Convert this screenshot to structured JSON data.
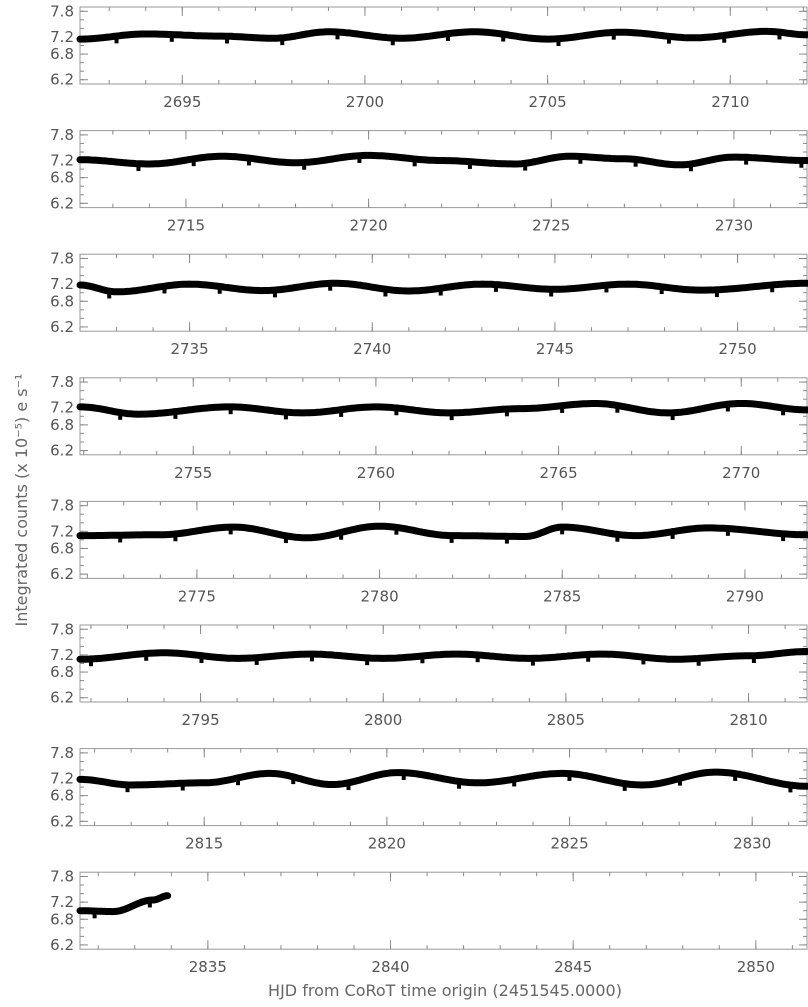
{
  "chart_data": {
    "type": "line",
    "xlabel": "HJD from CoRoT time origin (2451545.0000)",
    "ylabel": "Integrated counts (x 10⁻⁵) e s⁻¹",
    "y_tick_labels": [
      "7.8",
      "7.2",
      "6.8",
      "6.2"
    ],
    "ylim": [
      6.1,
      7.9
    ],
    "series_color": "#000000",
    "transit_period_days": 1.5122,
    "transit_depth": 0.17,
    "panels": [
      {
        "xlim": [
          2692.2,
          2712.1
        ],
        "x_tick_labels": [
          "2695",
          "2700",
          "2705",
          "2710"
        ],
        "trend": [
          [
            2692.2,
            7.15
          ],
          [
            2694,
            7.27
          ],
          [
            2696,
            7.22
          ],
          [
            2697.5,
            7.17
          ],
          [
            2699,
            7.32
          ],
          [
            2701,
            7.17
          ],
          [
            2703,
            7.32
          ],
          [
            2705,
            7.15
          ],
          [
            2707,
            7.31
          ],
          [
            2709,
            7.18
          ],
          [
            2711,
            7.33
          ],
          [
            2712.1,
            7.25
          ]
        ],
        "first_transit": 2693.2
      },
      {
        "xlim": [
          2712.1,
          2732.0
        ],
        "x_tick_labels": [
          "2715",
          "2720",
          "2725",
          "2730"
        ],
        "trend": [
          [
            2712.1,
            7.22
          ],
          [
            2714,
            7.12
          ],
          [
            2716,
            7.3
          ],
          [
            2718,
            7.15
          ],
          [
            2720,
            7.32
          ],
          [
            2722,
            7.2
          ],
          [
            2724,
            7.12
          ],
          [
            2725.5,
            7.3
          ],
          [
            2727,
            7.24
          ],
          [
            2728.5,
            7.1
          ],
          [
            2730,
            7.28
          ],
          [
            2732,
            7.2
          ]
        ],
        "first_transit": 2713.7
      },
      {
        "xlim": [
          2732.0,
          2751.9
        ],
        "x_tick_labels": [
          "2735",
          "2740",
          "2745",
          "2750"
        ],
        "trend": [
          [
            2732,
            7.18
          ],
          [
            2733,
            7.02
          ],
          [
            2735,
            7.2
          ],
          [
            2737,
            7.05
          ],
          [
            2739,
            7.22
          ],
          [
            2741,
            7.04
          ],
          [
            2743,
            7.2
          ],
          [
            2745,
            7.08
          ],
          [
            2747,
            7.2
          ],
          [
            2749,
            7.06
          ],
          [
            2751.9,
            7.22
          ]
        ],
        "first_transit": 2732.8
      },
      {
        "xlim": [
          2751.9,
          2771.8
        ],
        "x_tick_labels": [
          "2755",
          "2760",
          "2765",
          "2770"
        ],
        "trend": [
          [
            2751.9,
            7.22
          ],
          [
            2753.5,
            7.05
          ],
          [
            2756,
            7.22
          ],
          [
            2758,
            7.08
          ],
          [
            2760,
            7.22
          ],
          [
            2762,
            7.08
          ],
          [
            2764,
            7.18
          ],
          [
            2766,
            7.3
          ],
          [
            2768,
            7.08
          ],
          [
            2770,
            7.3
          ],
          [
            2771.8,
            7.15
          ]
        ],
        "first_transit": 2753.0
      },
      {
        "xlim": [
          2771.8,
          2791.7
        ],
        "x_tick_labels": [
          "2775",
          "2780",
          "2785",
          "2790"
        ],
        "trend": [
          [
            2771.8,
            7.1
          ],
          [
            2774,
            7.12
          ],
          [
            2776,
            7.3
          ],
          [
            2778,
            7.05
          ],
          [
            2780,
            7.32
          ],
          [
            2782,
            7.1
          ],
          [
            2784,
            7.08
          ],
          [
            2785,
            7.3
          ],
          [
            2787,
            7.1
          ],
          [
            2789,
            7.28
          ],
          [
            2791.7,
            7.12
          ]
        ],
        "first_transit": 2772.9
      },
      {
        "xlim": [
          2791.7,
          2811.6
        ],
        "x_tick_labels": [
          "2795",
          "2800",
          "2805",
          "2810"
        ],
        "trend": [
          [
            2791.7,
            7.1
          ],
          [
            2794,
            7.25
          ],
          [
            2796,
            7.12
          ],
          [
            2798,
            7.22
          ],
          [
            2800,
            7.12
          ],
          [
            2802,
            7.22
          ],
          [
            2804,
            7.12
          ],
          [
            2806,
            7.22
          ],
          [
            2808,
            7.1
          ],
          [
            2810,
            7.18
          ],
          [
            2811.6,
            7.28
          ]
        ],
        "first_transit": 2792.0
      },
      {
        "xlim": [
          2811.6,
          2831.5
        ],
        "x_tick_labels": [
          "2815",
          "2820",
          "2825",
          "2830"
        ],
        "trend": [
          [
            2811.6,
            7.18
          ],
          [
            2813,
            7.05
          ],
          [
            2815,
            7.1
          ],
          [
            2816.8,
            7.32
          ],
          [
            2818.5,
            7.06
          ],
          [
            2820.3,
            7.34
          ],
          [
            2822.5,
            7.1
          ],
          [
            2824.8,
            7.32
          ],
          [
            2827,
            7.05
          ],
          [
            2829,
            7.35
          ],
          [
            2831.5,
            7.02
          ]
        ],
        "first_transit": 2812.9
      },
      {
        "xlim": [
          2831.5,
          2851.4
        ],
        "x_tick_labels": [
          "2835",
          "2840",
          "2845",
          "2850"
        ],
        "trend": [
          [
            2831.5,
            7.0
          ],
          [
            2832.4,
            6.98
          ],
          [
            2833.5,
            7.25
          ],
          [
            2833.9,
            7.35
          ]
        ],
        "first_transit": 2831.9
      }
    ]
  }
}
